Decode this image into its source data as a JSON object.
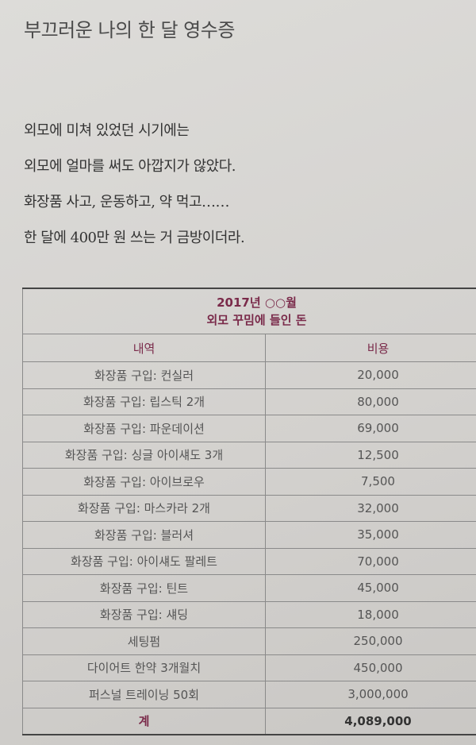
{
  "title": "부끄러운 나의 한 달 영수증",
  "paragraph": [
    "외모에 미쳐 있었던 시기에는",
    "외모에 얼마를 써도 아깝지가 않았다.",
    "화장품 사고, 운동하고, 약 먹고……",
    "한 달에 400만 원 쓰는 거 금방이더라."
  ],
  "table": {
    "caption_line1": "2017년 ○○월",
    "caption_line2": "외모 꾸밈에 들인 돈",
    "headers": [
      "내역",
      "비용"
    ],
    "rows": [
      [
        "화장품 구입: 컨실러",
        "20,000"
      ],
      [
        "화장품 구입: 립스틱 2개",
        "80,000"
      ],
      [
        "화장품 구입: 파운데이션",
        "69,000"
      ],
      [
        "화장품 구입: 싱글 아이섀도 3개",
        "12,500"
      ],
      [
        "화장품 구입: 아이브로우",
        "7,500"
      ],
      [
        "화장품 구입: 마스카라 2개",
        "32,000"
      ],
      [
        "화장품 구입: 블러셔",
        "35,000"
      ],
      [
        "화장품 구입: 아이섀도 팔레트",
        "70,000"
      ],
      [
        "화장품 구입: 틴트",
        "45,000"
      ],
      [
        "화장품 구입: 섀딩",
        "18,000"
      ],
      [
        "세팅펌",
        "250,000"
      ],
      [
        "다이어트 한약 3개월치",
        "450,000"
      ],
      [
        "퍼스널 트레이닝 50회",
        "3,000,000"
      ]
    ],
    "total_label": "계",
    "total_value": "4,089,000"
  },
  "colors": {
    "accent": "#7a2a4a",
    "paper": "#d7d5d2"
  }
}
